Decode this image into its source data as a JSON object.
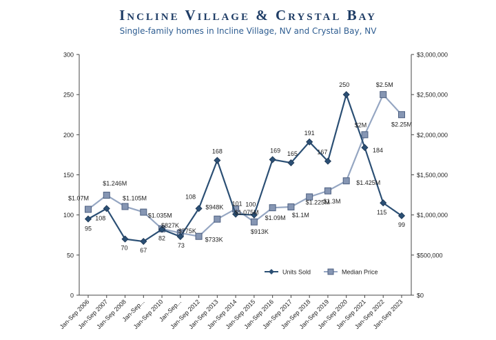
{
  "header": {
    "title": "Incline Village & Crystal Bay",
    "subtitle": "Single-family homes in Incline Village, NV and Crystal Bay, NV"
  },
  "chart_data": {
    "type": "line",
    "categories": [
      "Jan-Sep 2006",
      "Jan-Sep 2007",
      "Jan-Sep 2008",
      "Jan-Sep...",
      "Jan-Sep 2010",
      "Jan-Sep...",
      "Jan-Sep 2012",
      "Jan-Sep 2013",
      "Jan-Sep 2014",
      "Jan-Sep 2015",
      "Jan-Sep 2016",
      "Jan-Sep 2017",
      "Jan-Sep 2018",
      "Jan-Sep 2019",
      "Jan-Sep 2020",
      "Jan-Sep 2021",
      "Jan-Sep 2022",
      "Jan-Sep 2023"
    ],
    "series": [
      {
        "name": "Units Sold",
        "axis": "left",
        "color": "#2b4f74",
        "marker": "diamond",
        "values": [
          95,
          108,
          70,
          67,
          82,
          73,
          108,
          168,
          101,
          100,
          169,
          165,
          191,
          167,
          250,
          184,
          115,
          99
        ],
        "labels": [
          "95",
          "108",
          "70",
          "67",
          "82",
          "73",
          "108",
          "168",
          "101",
          "100",
          "169",
          "165",
          "191",
          "167",
          "250",
          "184",
          "115",
          "99"
        ]
      },
      {
        "name": "Median Price",
        "axis": "right",
        "color": "#95a6c2",
        "marker": "square",
        "values": [
          1070000,
          1246000,
          1105000,
          1035000,
          827000,
          775000,
          733000,
          948000,
          1075000,
          913000,
          1090000,
          1100000,
          1225000,
          1300000,
          1425000,
          2000000,
          2500000,
          2250000
        ],
        "labels": [
          "$1.07M",
          "$1.246M",
          "$1.105M",
          "$1.035M",
          "$827K",
          "$775K",
          "$733K",
          "$948K",
          "$1.075M",
          "$913K",
          "$1.09M",
          "$1.1M",
          "$1.225M",
          "$1.3M",
          "$1.425M",
          "$2M",
          "$2.5M",
          "$2.25M"
        ]
      }
    ],
    "left_axis": {
      "min": 0,
      "max": 300,
      "ticks": [
        "0",
        "50",
        "100",
        "150",
        "200",
        "250",
        "300"
      ]
    },
    "right_axis": {
      "min": 0,
      "max": 3000000,
      "ticks": [
        "$0",
        "$500,000",
        "$1,000,000",
        "$1,500,000",
        "$2,000,000",
        "$2,500,000",
        "$3,000,000"
      ]
    },
    "grid": false,
    "legend_position": "bottom-right"
  }
}
